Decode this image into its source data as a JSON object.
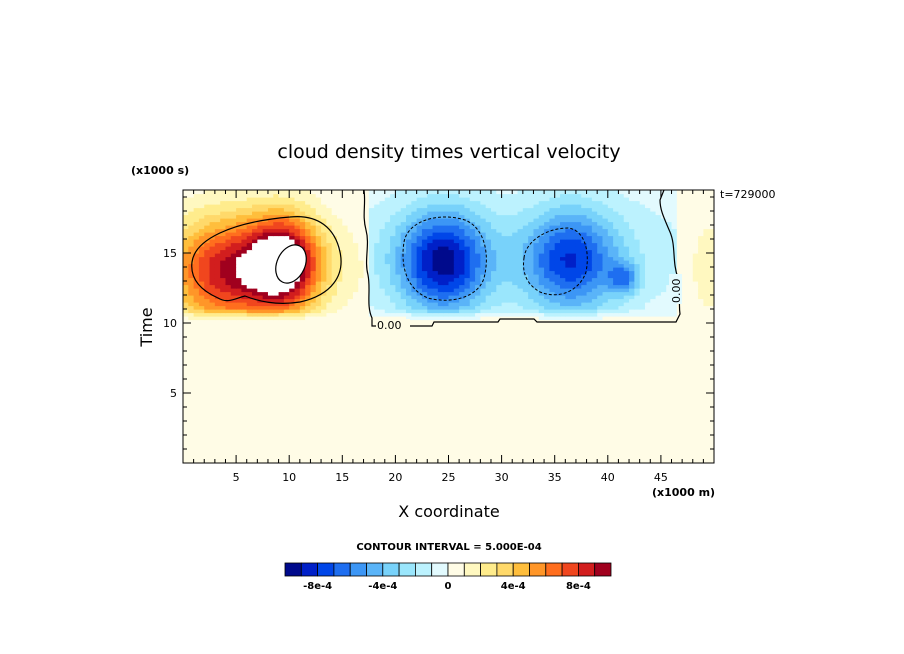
{
  "chart_data": {
    "type": "heatmap",
    "title": "cloud density times vertical velocity",
    "xlabel": "X coordinate",
    "ylabel": "Time",
    "x_units": "(x1000 m)",
    "y_units": "(x1000 s)",
    "time_stamp": "t=729000",
    "xlim": [
      0,
      50
    ],
    "ylim": [
      0,
      19.5
    ],
    "x_ticks": [
      5,
      10,
      15,
      20,
      25,
      30,
      35,
      40,
      45
    ],
    "y_ticks": [
      5,
      10,
      15
    ],
    "contour_interval_text": "CONTOUR INTERVAL = 5.000E-04",
    "contour_label_values": [
      "0.00",
      "0.00"
    ],
    "colorbar": {
      "levels": [
        -0.001,
        -0.0009,
        -0.0008,
        -0.0007,
        -0.0006,
        -0.0005,
        -0.0004,
        -0.0003,
        -0.0002,
        -0.0001,
        0,
        0.0001,
        0.0002,
        0.0003,
        0.0004,
        0.0005,
        0.0006,
        0.0007,
        0.0008,
        0.0009,
        0.001
      ],
      "colors": [
        "#000a8c",
        "#0020c8",
        "#0046e8",
        "#1e6ef0",
        "#3c96f5",
        "#5ab4f8",
        "#78d2fa",
        "#9ae6fc",
        "#bcf2fe",
        "#e2fafe",
        "#fffce6",
        "#fff8c0",
        "#ffec8c",
        "#ffd96a",
        "#ffbe3c",
        "#ff9628",
        "#ff6e1e",
        "#f0461e",
        "#d21e1e",
        "#a0001e"
      ],
      "tick_labels": [
        "-8e-4",
        "-4e-4",
        "0",
        "4e-4",
        "8e-4"
      ],
      "tick_values": [
        -0.0008,
        -0.0004,
        0,
        0.0004,
        0.0008
      ]
    },
    "background_value": 5e-05,
    "features": [
      {
        "kind": "positive_cell",
        "x": 4,
        "y": 13.7,
        "peak": 0.00075,
        "sx": 3.5,
        "sy": 2.8
      },
      {
        "kind": "positive_cell",
        "x": 9.5,
        "y": 14.3,
        "peak": 0.00105,
        "sx": 2.4,
        "sy": 2.4
      },
      {
        "kind": "negative_cell",
        "x": 24.5,
        "y": 14.4,
        "peak": -0.00085,
        "sx": 3.0,
        "sy": 2.6
      },
      {
        "kind": "negative_cell",
        "x": 36.5,
        "y": 14.5,
        "peak": -0.0007,
        "sx": 3.2,
        "sy": 2.6
      },
      {
        "kind": "negative_cell",
        "x": 41.5,
        "y": 13.2,
        "peak": -0.0004,
        "sx": 1.0,
        "sy": 0.8
      },
      {
        "kind": "positive_cell",
        "x": 49.5,
        "y": 14.0,
        "peak": 0.00015,
        "sx": 1.5,
        "sy": 3.0
      }
    ]
  }
}
